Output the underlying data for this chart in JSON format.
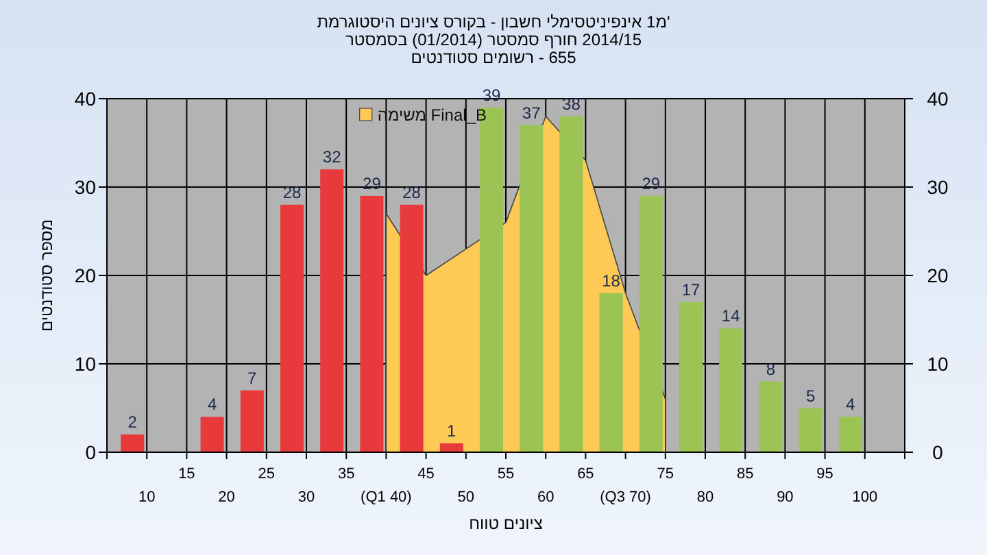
{
  "chart_data": {
    "type": "bar",
    "title": "היסטוגרמת ציונים בקורס - חשבון אינפיניטסימלי 1מ'",
    "subtitle": "בסמסטר (01/2014) סמסטר חורף 2014/15\nסטודנטים רשומים - 655",
    "xlabel": "טווח ציונים",
    "ylabel": "מספר סטודנטים",
    "categories": [
      "10",
      "15",
      "20",
      "25",
      "30",
      "35",
      "(Q1 40)",
      "45",
      "50",
      "55",
      "60",
      "65",
      "(Q3 70)",
      "75",
      "80",
      "85",
      "90",
      "95",
      "100"
    ],
    "series": [
      {
        "colors": [
          "#e83a3a",
          null,
          "#e83a3a",
          "#e83a3a",
          "#e83a3a",
          "#e83a3a",
          "#e83a3a",
          "#e83a3a",
          "#e83a3a",
          "#9cc454",
          "#9cc454",
          "#9cc454",
          "#9cc454",
          "#9cc454",
          "#9cc454",
          "#9cc454",
          "#9cc454",
          "#9cc454",
          "#9cc454"
        ],
        "values": [
          2,
          null,
          4,
          7,
          28,
          32,
          29,
          28,
          1,
          39,
          37,
          38,
          18,
          29,
          17,
          14,
          8,
          5,
          4
        ],
        "value_labels": [
          "2",
          null,
          "4",
          "7",
          "28",
          "32",
          "29",
          "28",
          "1",
          "39",
          "37",
          "38",
          "18",
          "29",
          "17",
          "14",
          "8",
          "5",
          "4"
        ]
      },
      {
        "type": "area",
        "name": "משימה Final_B",
        "color": "#ffc955",
        "values": [
          null,
          null,
          null,
          null,
          null,
          null,
          27,
          20,
          23,
          26,
          38,
          33,
          18,
          6,
          null,
          null,
          null,
          null,
          null
        ]
      }
    ],
    "ylim": [
      0,
      40
    ],
    "yticks": [
      0,
      10,
      20,
      30,
      40
    ],
    "y2lim": [
      0,
      40
    ],
    "y2ticks": [
      0,
      10,
      20,
      30,
      40
    ],
    "grid": true,
    "legend": "top"
  }
}
